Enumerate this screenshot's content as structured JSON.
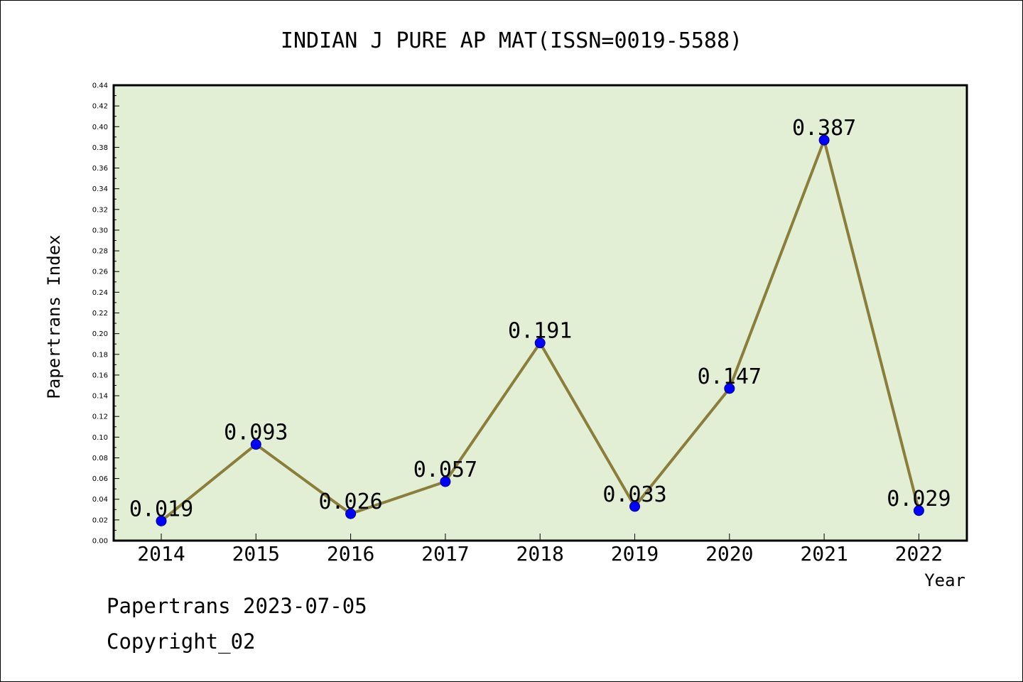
{
  "chart_data": {
    "type": "line",
    "title": "INDIAN J PURE AP MAT(ISSN=0019-5588)",
    "xlabel": "Year",
    "ylabel": "Papertrans Index",
    "categories": [
      "2014",
      "2015",
      "2016",
      "2017",
      "2018",
      "2019",
      "2020",
      "2021",
      "2022"
    ],
    "values": [
      0.019,
      0.093,
      0.026,
      0.057,
      0.191,
      0.033,
      0.147,
      0.387,
      0.029
    ],
    "data_labels": [
      "0.019",
      "0.093",
      "0.026",
      "0.057",
      "0.191",
      "0.033",
      "0.147",
      "0.387",
      "0.029"
    ],
    "ylim": [
      0,
      0.44
    ],
    "yticks": [
      "0.00",
      "0.02",
      "0.04",
      "0.06",
      "0.08",
      "0.10",
      "0.12",
      "0.14",
      "0.16",
      "0.18",
      "0.20",
      "0.22",
      "0.24",
      "0.26",
      "0.28",
      "0.30",
      "0.32",
      "0.34",
      "0.36",
      "0.38",
      "0.40",
      "0.42",
      "0.44"
    ],
    "grid": false,
    "colors": {
      "plot_background": "#e2efd5",
      "line": "#8b7d3a",
      "marker": "#0000ff"
    }
  },
  "footer": {
    "line1": "Papertrans 2023-07-05",
    "line2": "Copyright_02"
  }
}
